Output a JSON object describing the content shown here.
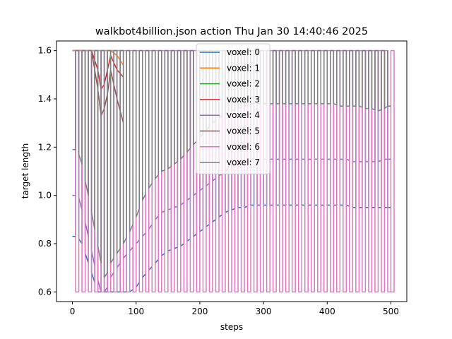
{
  "chart_data": {
    "type": "line",
    "title": "walkbot4billion.json action Thu Jan 30 14:40:46 2025",
    "xlabel": "steps",
    "ylabel": "target length",
    "xlim": [
      -25,
      525
    ],
    "ylim": [
      0.56,
      1.64
    ],
    "xticks": [
      0,
      100,
      200,
      300,
      400,
      500
    ],
    "yticks": [
      0.6,
      0.8,
      1.0,
      1.2,
      1.4,
      1.6
    ],
    "ytick_labels": [
      "0.6",
      "0.8",
      "1.0",
      "1.2",
      "1.4",
      "1.6"
    ],
    "grid": false,
    "legend_position": "top-center",
    "period": 10,
    "series": [
      {
        "name": "voxel: 0",
        "color": "#1f77b4",
        "points": [
          [
            0,
            0.83
          ],
          [
            5,
            0.83
          ],
          [
            10,
            0.82
          ],
          [
            15,
            0.8
          ],
          [
            20,
            0.76
          ],
          [
            25,
            0.72
          ],
          [
            30,
            0.68
          ],
          [
            35,
            0.64
          ],
          [
            40,
            0.6
          ],
          [
            50,
            0.6
          ],
          [
            60,
            0.6
          ],
          [
            70,
            0.6
          ],
          [
            80,
            0.6
          ],
          [
            90,
            0.6
          ],
          [
            100,
            0.62
          ],
          [
            110,
            0.66
          ],
          [
            120,
            0.69
          ],
          [
            130,
            0.72
          ],
          [
            140,
            0.75
          ],
          [
            150,
            0.77
          ],
          [
            160,
            0.78
          ],
          [
            170,
            0.79
          ],
          [
            180,
            0.81
          ],
          [
            190,
            0.83
          ],
          [
            200,
            0.85
          ],
          [
            210,
            0.87
          ],
          [
            220,
            0.89
          ],
          [
            230,
            0.91
          ],
          [
            240,
            0.93
          ],
          [
            250,
            0.94
          ],
          [
            260,
            0.95
          ],
          [
            270,
            0.95
          ],
          [
            280,
            0.96
          ],
          [
            290,
            0.96
          ],
          [
            300,
            0.96
          ],
          [
            310,
            0.96
          ],
          [
            320,
            0.96
          ],
          [
            330,
            0.96
          ],
          [
            340,
            0.96
          ],
          [
            350,
            0.96
          ],
          [
            360,
            0.96
          ],
          [
            370,
            0.96
          ],
          [
            380,
            0.96
          ],
          [
            390,
            0.96
          ],
          [
            400,
            0.96
          ],
          [
            410,
            0.96
          ],
          [
            420,
            0.96
          ],
          [
            430,
            0.96
          ],
          [
            440,
            0.95
          ],
          [
            450,
            0.95
          ],
          [
            460,
            0.95
          ],
          [
            470,
            0.95
          ],
          [
            480,
            0.95
          ],
          [
            490,
            0.95
          ],
          [
            495,
            0.95
          ]
        ]
      },
      {
        "name": "voxel: 1",
        "color": "#ff7f0e",
        "points": [
          [
            0,
            1.6
          ],
          [
            60,
            1.6
          ],
          [
            70,
            1.58
          ],
          [
            80,
            1.54
          ]
        ]
      },
      {
        "name": "voxel: 2",
        "color": "#2ca02c",
        "points": [
          [
            0,
            1.6
          ],
          [
            80,
            1.6
          ]
        ]
      },
      {
        "name": "voxel: 3",
        "color": "#d62728",
        "points": [
          [
            0,
            1.6
          ],
          [
            30,
            1.6
          ],
          [
            40,
            1.52
          ],
          [
            45,
            1.44
          ],
          [
            50,
            1.46
          ],
          [
            55,
            1.52
          ],
          [
            60,
            1.58
          ],
          [
            70,
            1.52
          ],
          [
            80,
            1.49
          ]
        ]
      },
      {
        "name": "voxel: 4",
        "color": "#9467bd",
        "points": [
          [
            0,
            1.0
          ],
          [
            5,
            1.0
          ],
          [
            10,
            0.99
          ],
          [
            15,
            0.94
          ],
          [
            20,
            0.89
          ],
          [
            25,
            0.83
          ],
          [
            30,
            0.77
          ],
          [
            35,
            0.71
          ],
          [
            40,
            0.65
          ],
          [
            45,
            0.6
          ],
          [
            50,
            0.6
          ],
          [
            55,
            0.62
          ],
          [
            60,
            0.66
          ],
          [
            70,
            0.7
          ],
          [
            80,
            0.74
          ],
          [
            90,
            0.77
          ],
          [
            100,
            0.8
          ],
          [
            110,
            0.83
          ],
          [
            120,
            0.86
          ],
          [
            130,
            0.9
          ],
          [
            140,
            0.93
          ],
          [
            150,
            0.94
          ],
          [
            160,
            0.95
          ],
          [
            170,
            0.96
          ],
          [
            180,
            0.98
          ],
          [
            190,
            1.0
          ],
          [
            200,
            1.02
          ],
          [
            210,
            1.04
          ],
          [
            220,
            1.06
          ],
          [
            230,
            1.08
          ],
          [
            240,
            1.1
          ],
          [
            250,
            1.12
          ],
          [
            260,
            1.13
          ],
          [
            270,
            1.14
          ],
          [
            280,
            1.15
          ],
          [
            290,
            1.15
          ],
          [
            300,
            1.15
          ],
          [
            310,
            1.15
          ],
          [
            320,
            1.15
          ],
          [
            330,
            1.15
          ],
          [
            340,
            1.15
          ],
          [
            350,
            1.15
          ],
          [
            360,
            1.15
          ],
          [
            370,
            1.15
          ],
          [
            380,
            1.15
          ],
          [
            390,
            1.15
          ],
          [
            400,
            1.15
          ],
          [
            410,
            1.15
          ],
          [
            420,
            1.15
          ],
          [
            430,
            1.15
          ],
          [
            440,
            1.14
          ],
          [
            450,
            1.14
          ],
          [
            460,
            1.14
          ],
          [
            470,
            1.14
          ],
          [
            480,
            1.14
          ],
          [
            490,
            1.15
          ],
          [
            495,
            1.15
          ]
        ]
      },
      {
        "name": "voxel: 5",
        "color": "#8c564b",
        "points": [
          [
            0,
            1.6
          ],
          [
            30,
            1.6
          ],
          [
            40,
            1.44
          ],
          [
            45,
            1.33
          ],
          [
            50,
            1.36
          ],
          [
            55,
            1.42
          ],
          [
            60,
            1.52
          ],
          [
            70,
            1.4
          ],
          [
            80,
            1.3
          ]
        ]
      },
      {
        "name": "voxel: 6",
        "color": "#e377c2",
        "points": []
      },
      {
        "name": "voxel: 7",
        "color": "#7f7f7f",
        "points": [
          [
            0,
            1.19
          ],
          [
            5,
            1.19
          ],
          [
            10,
            1.17
          ],
          [
            15,
            1.13
          ],
          [
            20,
            1.06
          ],
          [
            25,
            1.0
          ],
          [
            30,
            0.93
          ],
          [
            35,
            0.86
          ],
          [
            40,
            0.79
          ],
          [
            45,
            0.72
          ],
          [
            50,
            0.66
          ],
          [
            55,
            0.68
          ],
          [
            60,
            0.72
          ],
          [
            70,
            0.76
          ],
          [
            80,
            0.8
          ],
          [
            90,
            0.85
          ],
          [
            100,
            0.91
          ],
          [
            110,
            0.98
          ],
          [
            120,
            1.03
          ],
          [
            130,
            1.07
          ],
          [
            140,
            1.1
          ],
          [
            150,
            1.11
          ],
          [
            160,
            1.13
          ],
          [
            170,
            1.15
          ],
          [
            180,
            1.18
          ],
          [
            190,
            1.21
          ],
          [
            200,
            1.24
          ],
          [
            210,
            1.27
          ],
          [
            220,
            1.3
          ],
          [
            230,
            1.32
          ],
          [
            240,
            1.34
          ],
          [
            250,
            1.35
          ],
          [
            260,
            1.36
          ],
          [
            270,
            1.37
          ],
          [
            280,
            1.38
          ],
          [
            290,
            1.38
          ],
          [
            300,
            1.38
          ],
          [
            310,
            1.38
          ],
          [
            320,
            1.38
          ],
          [
            330,
            1.38
          ],
          [
            340,
            1.38
          ],
          [
            350,
            1.38
          ],
          [
            360,
            1.38
          ],
          [
            370,
            1.38
          ],
          [
            380,
            1.38
          ],
          [
            390,
            1.38
          ],
          [
            400,
            1.38
          ],
          [
            410,
            1.38
          ],
          [
            420,
            1.37
          ],
          [
            430,
            1.37
          ],
          [
            440,
            1.37
          ],
          [
            450,
            1.37
          ],
          [
            460,
            1.36
          ],
          [
            470,
            1.36
          ],
          [
            480,
            1.35
          ],
          [
            490,
            1.36
          ],
          [
            495,
            1.37
          ]
        ]
      }
    ]
  }
}
